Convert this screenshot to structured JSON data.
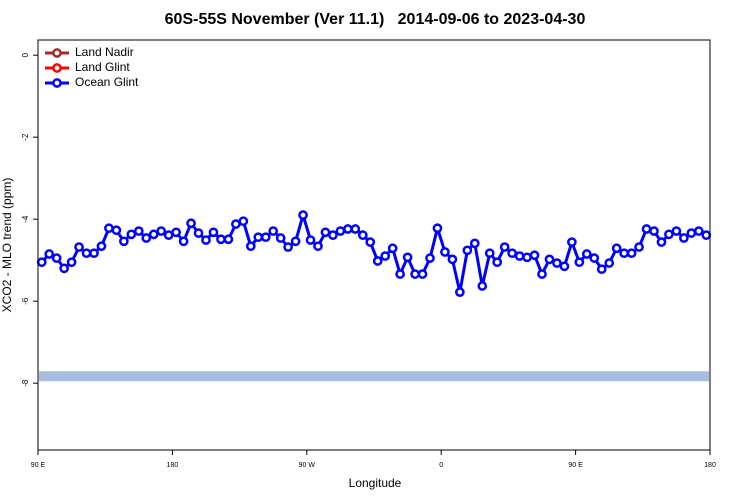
{
  "chart_data": {
    "type": "line",
    "title": "60S-55S November (Ver 11.1)   2014-09-06 to 2023-04-30",
    "xlabel": "Longitude",
    "ylabel": "XCO2 - MLO trend (ppm)",
    "xlim": [
      90,
      540
    ],
    "ylim": [
      -9.63,
      0.37
    ],
    "xticks": [
      {
        "value": 90,
        "label": "90 E"
      },
      180,
      {
        "value": 270,
        "label": "90 W"
      },
      {
        "value": 360,
        "label": "0"
      },
      {
        "value": 450,
        "label": "90 E"
      },
      {
        "value": 540,
        "label": "180"
      }
    ],
    "yticks": [
      0,
      -2,
      -4,
      -6,
      -8
    ],
    "legend": "top-left",
    "band": {
      "value": -7.83,
      "color": "#a6bddf"
    },
    "x": [
      92.5,
      97.5,
      102.5,
      107.5,
      112.5,
      117.5,
      122.5,
      127.5,
      132.5,
      137.5,
      142.5,
      147.5,
      152.5,
      157.5,
      162.5,
      167.5,
      172.5,
      177.5,
      182.5,
      187.5,
      192.5,
      197.5,
      202.5,
      207.5,
      212.5,
      217.5,
      222.5,
      227.5,
      232.5,
      237.5,
      242.5,
      247.5,
      252.5,
      257.5,
      262.5,
      267.5,
      272.5,
      277.5,
      282.5,
      287.5,
      292.5,
      297.5,
      302.5,
      307.5,
      312.5,
      317.5,
      322.5,
      327.5,
      332.5,
      337.5,
      342.5,
      347.5,
      352.5,
      357.5,
      362.5,
      367.5,
      372.5,
      377.5,
      382.5,
      387.5,
      392.5,
      397.5,
      402.5,
      407.5,
      412.5,
      417.5,
      422.5,
      427.5,
      432.5,
      437.5,
      442.5,
      447.5,
      452.5,
      457.5,
      462.5,
      467.5,
      472.5,
      477.5,
      482.5,
      487.5,
      492.5,
      497.5,
      502.5,
      507.5,
      512.5,
      517.5,
      522.5,
      527.5,
      532.5,
      537.5
    ],
    "series": [
      {
        "name": "Land Nadir",
        "color": "#a52a2a",
        "values": [
          null,
          null,
          null,
          null,
          null,
          null,
          null,
          null,
          null,
          null,
          null,
          null,
          null,
          null,
          null,
          null,
          null,
          null,
          null,
          null,
          null,
          null,
          null,
          null,
          null,
          null,
          null,
          null,
          null,
          null,
          null,
          null,
          null,
          null,
          null,
          null,
          null,
          null,
          null,
          null,
          null,
          null,
          null,
          null,
          null,
          null,
          null,
          null,
          null,
          null,
          null,
          null,
          null,
          null,
          null,
          null,
          null,
          null,
          null,
          null,
          null,
          null,
          null,
          null,
          null,
          null,
          null,
          null,
          null,
          null,
          null,
          null,
          null,
          null,
          null,
          null,
          null,
          null,
          null,
          null,
          null,
          null,
          null,
          null,
          null,
          null,
          null,
          null,
          null,
          null
        ]
      },
      {
        "name": "Land Glint",
        "color": "#ff0000",
        "values": [
          null,
          null,
          null,
          null,
          null,
          null,
          null,
          null,
          null,
          null,
          null,
          null,
          null,
          null,
          null,
          null,
          null,
          null,
          null,
          null,
          null,
          null,
          null,
          null,
          null,
          null,
          null,
          null,
          null,
          null,
          null,
          null,
          null,
          null,
          null,
          null,
          null,
          null,
          null,
          null,
          null,
          null,
          null,
          null,
          null,
          null,
          null,
          null,
          null,
          null,
          null,
          null,
          null,
          null,
          null,
          null,
          null,
          null,
          null,
          null,
          null,
          null,
          null,
          null,
          null,
          null,
          null,
          null,
          null,
          null,
          null,
          null,
          null,
          null,
          null,
          null,
          null,
          null,
          null,
          null,
          null,
          null,
          null,
          null,
          null,
          null,
          null,
          null,
          null,
          null
        ]
      },
      {
        "name": "Ocean Glint",
        "color": "#0000ff",
        "values": [
          -5.05,
          -4.85,
          -4.95,
          -5.2,
          -5.05,
          -4.68,
          -4.83,
          -4.83,
          -4.66,
          -4.22,
          -4.27,
          -4.54,
          -4.37,
          -4.29,
          -4.46,
          -4.37,
          -4.29,
          -4.39,
          -4.32,
          -4.54,
          -4.1,
          -4.34,
          -4.51,
          -4.32,
          -4.49,
          -4.49,
          -4.12,
          -4.05,
          -4.66,
          -4.44,
          -4.44,
          -4.29,
          -4.46,
          -4.68,
          -4.54,
          -3.9,
          -4.51,
          -4.66,
          -4.32,
          -4.39,
          -4.29,
          -4.24,
          -4.24,
          -4.39,
          -4.56,
          -5.02,
          -4.9,
          -4.71,
          -5.34,
          -4.93,
          -5.34,
          -5.34,
          -4.95,
          -4.22,
          -4.8,
          -4.98,
          -5.78,
          -4.76,
          -4.59,
          -5.63,
          -4.83,
          -5.05,
          -4.68,
          -4.83,
          -4.9,
          -4.93,
          -4.88,
          -5.34,
          -4.98,
          -5.07,
          -5.15,
          -4.56,
          -5.05,
          -4.85,
          -4.95,
          -5.22,
          -5.07,
          -4.71,
          -4.83,
          -4.83,
          -4.68,
          -4.24,
          -4.29,
          -4.56,
          -4.37,
          -4.29,
          -4.46,
          -4.34,
          -4.29,
          -4.39
        ]
      }
    ]
  }
}
